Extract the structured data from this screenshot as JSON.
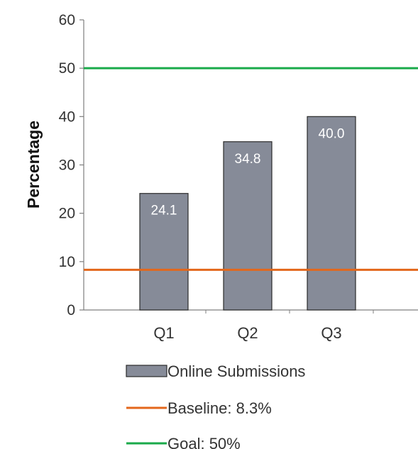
{
  "chart_data": {
    "type": "bar",
    "categories": [
      "Q1",
      "Q2",
      "Q3"
    ],
    "series": [
      {
        "name": "Online Submissions",
        "values": [
          24.1,
          34.8,
          40.0
        ],
        "value_labels": [
          "24.1",
          "34.8",
          "40.0"
        ],
        "color": "#868b98"
      }
    ],
    "reference_lines": [
      {
        "name": "Baseline",
        "label": "Baseline:  8.3%",
        "value": 8.3,
        "color": "#e3671b"
      },
      {
        "name": "Goal",
        "label": "Goal:  50%",
        "value": 50,
        "color": "#1aaa4a"
      }
    ],
    "ylabel": "Percentage",
    "xlabel": "",
    "title": "",
    "ylim": [
      0,
      60
    ],
    "yticks": [
      0,
      10,
      20,
      30,
      40,
      50,
      60
    ],
    "grid": false,
    "legend_position": "bottom"
  }
}
